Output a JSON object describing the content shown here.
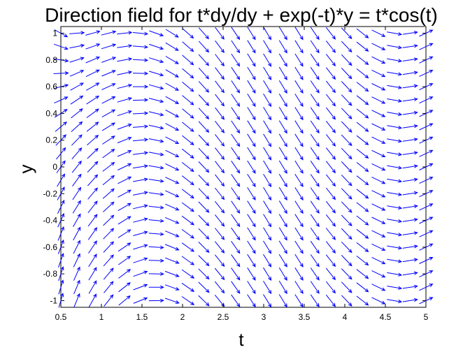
{
  "chart_data": {
    "type": "quiver",
    "title": "Direction field for t*dy/dy + exp(-t)*y = t*cos(t)",
    "xlabel": "t",
    "ylabel": "y",
    "xlim": [
      0.5,
      5
    ],
    "ylim": [
      -1.05,
      1.05
    ],
    "xticks": [
      0.5,
      1,
      1.5,
      2,
      2.5,
      3,
      3.5,
      4,
      4.5,
      5
    ],
    "xtick_labels": [
      "0.5",
      "1",
      "1.5",
      "2",
      "2.5",
      "3",
      "3.5",
      "4",
      "4.5",
      "5"
    ],
    "yticks": [
      -1,
      -0.8,
      -0.6,
      -0.4,
      -0.2,
      0,
      0.2,
      0.4,
      0.6,
      0.8,
      1
    ],
    "ytick_labels": [
      "-1",
      "-0.8",
      "-0.6",
      "-0.4",
      "-0.2",
      "0",
      "0.2",
      "0.4",
      "0.6",
      "0.8",
      "1"
    ],
    "field": {
      "equation": "dy/dt = cos(t) - exp(-t)*y/t",
      "t_range": [
        0.5,
        5
      ],
      "y_range": [
        -1,
        1
      ],
      "t_count": 24,
      "y_count": 21
    },
    "grid": false,
    "arrow_color": "#0000ff"
  }
}
